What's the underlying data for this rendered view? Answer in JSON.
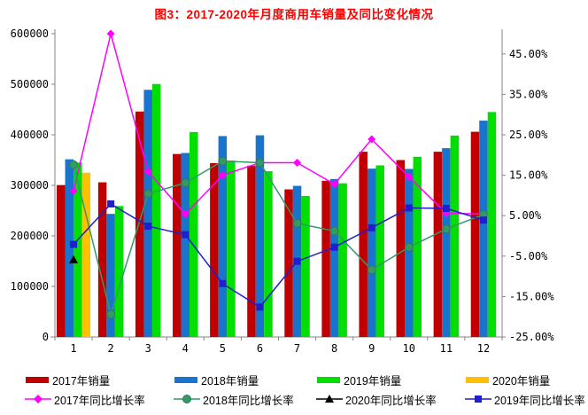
{
  "title": "图3：2017-2020年月度商用车销量及同比变化情况",
  "title_color": "#FF0000",
  "chart_data": {
    "type": "combo-bar-line",
    "title": "图3：2017-2020年月度商用车销量及同比变化情况",
    "categories": [
      1,
      2,
      3,
      4,
      5,
      6,
      7,
      8,
      9,
      10,
      11,
      12
    ],
    "bar_series": [
      {
        "name": "2017年销量",
        "color": "#C00000",
        "axis": "left",
        "values": [
          300500,
          306000,
          446000,
          362000,
          344000,
          339000,
          292000,
          309000,
          366500,
          350000,
          366500,
          406000
        ]
      },
      {
        "name": "2018年销量",
        "color": "#1874CD",
        "axis": "left",
        "values": [
          351500,
          243500,
          489000,
          364000,
          397500,
          399000,
          299000,
          312500,
          333000,
          332500,
          373500,
          428000
        ]
      },
      {
        "name": "2019年销量",
        "color": "#00DF00",
        "axis": "left",
        "values": [
          345000,
          259000,
          500500,
          405500,
          349000,
          328000,
          279000,
          304000,
          339500,
          356500,
          398500,
          445000
        ]
      },
      {
        "name": "2020年销量",
        "color": "#FFC000",
        "axis": "left",
        "values": [
          325000,
          null,
          null,
          null,
          null,
          null,
          null,
          null,
          null,
          null,
          null,
          null
        ]
      }
    ],
    "line_series": [
      {
        "name": "2017年同比增长率",
        "color": "#FF00FF",
        "marker": "diamond",
        "axis": "right",
        "values": [
          11.1,
          50.0,
          15.9,
          5.4,
          15.0,
          18.1,
          18.1,
          12.8,
          23.9,
          14.6,
          5.6,
          5.4
        ]
      },
      {
        "name": "2018年同比增长率",
        "color": "#339966",
        "marker": "circle",
        "axis": "right",
        "values": [
          17.6,
          -19.4,
          10.4,
          13.1,
          18.5,
          18.1,
          3.1,
          1.2,
          -8.4,
          -2.8,
          1.7,
          5.3
        ]
      },
      {
        "name": "2020年同比增长率",
        "color": "#000000",
        "marker": "triangle",
        "axis": "right",
        "values": [
          -5.9,
          null,
          null,
          null,
          null,
          null,
          null,
          null,
          null,
          null,
          null,
          null
        ]
      },
      {
        "name": "2019年同比增长率",
        "color": "#1F1FD0",
        "marker": "square",
        "axis": "right",
        "values": [
          -2.1,
          7.9,
          2.4,
          0.3,
          -11.8,
          -17.6,
          -6.3,
          -2.8,
          2.0,
          6.9,
          6.8,
          3.9
        ]
      }
    ],
    "left_axis": {
      "min": 0,
      "max": 600000,
      "step": 100000,
      "tick_labels": [
        "0",
        "100000",
        "200000",
        "300000",
        "400000",
        "500000",
        "600000"
      ]
    },
    "right_axis": {
      "min": -25,
      "max": 50,
      "tick_step": 10,
      "tick_min": -25,
      "tick_max": 45,
      "tick_labels": [
        "-25.00%",
        "-15.00%",
        "-5.00%",
        "5.00%",
        "15.00%",
        "25.00%",
        "35.00%",
        "45.00%"
      ]
    },
    "x_axis": {
      "tick_labels": [
        "1",
        "2",
        "3",
        "4",
        "5",
        "6",
        "7",
        "8",
        "9",
        "10",
        "11",
        "12"
      ]
    },
    "grid": false,
    "legend_position": "bottom",
    "legend_rows": [
      [
        "2017年销量",
        "2018年销量",
        "2019年销量",
        "2020年销量"
      ],
      [
        "2017年同比增长率",
        "2018年同比增长率",
        "2020年同比增长率",
        "2019年同比增长率"
      ]
    ]
  }
}
